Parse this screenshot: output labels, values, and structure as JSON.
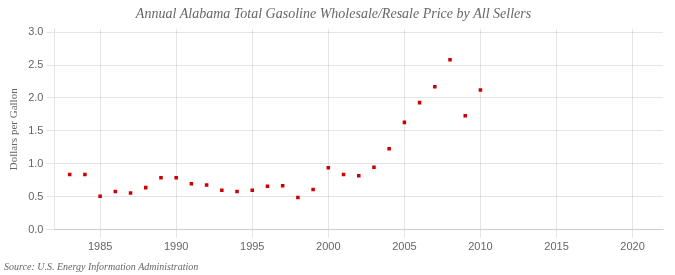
{
  "chart_data": {
    "type": "scatter",
    "title": "Annual Alabama Total Gasoline Wholesale/Resale Price by All Sellers",
    "ylabel": "Dollars per Gallon",
    "annotations": [
      "Source: U.S. Energy Information Administration"
    ],
    "x": [
      1983,
      1984,
      1985,
      1986,
      1987,
      1988,
      1989,
      1990,
      1991,
      1992,
      1993,
      1994,
      1995,
      1996,
      1997,
      1998,
      1999,
      2000,
      2001,
      2002,
      2003,
      2004,
      2005,
      2006,
      2007,
      2008,
      2009,
      2010
    ],
    "values": [
      0.84,
      0.84,
      0.51,
      0.58,
      0.56,
      0.64,
      0.79,
      0.79,
      0.7,
      0.68,
      0.6,
      0.58,
      0.6,
      0.66,
      0.67,
      0.49,
      0.61,
      0.94,
      0.84,
      0.82,
      0.95,
      1.23,
      1.63,
      1.93,
      2.17,
      2.58,
      1.73,
      2.12
    ],
    "color": "#cc0000",
    "marker": "square",
    "xlim": [
      1982,
      2022
    ],
    "xticks": [
      1985,
      1990,
      1995,
      2000,
      2005,
      2010,
      2015,
      2020
    ],
    "ylim": [
      0,
      3.05
    ],
    "yticks": [
      {
        "value": 0,
        "label": "0.0"
      },
      0.5,
      {
        "value": 1,
        "label": "1.0"
      },
      1.5,
      {
        "value": 2,
        "label": "2.0"
      },
      2.5,
      {
        "value": 3,
        "label": "3.0"
      }
    ],
    "grid": true
  }
}
